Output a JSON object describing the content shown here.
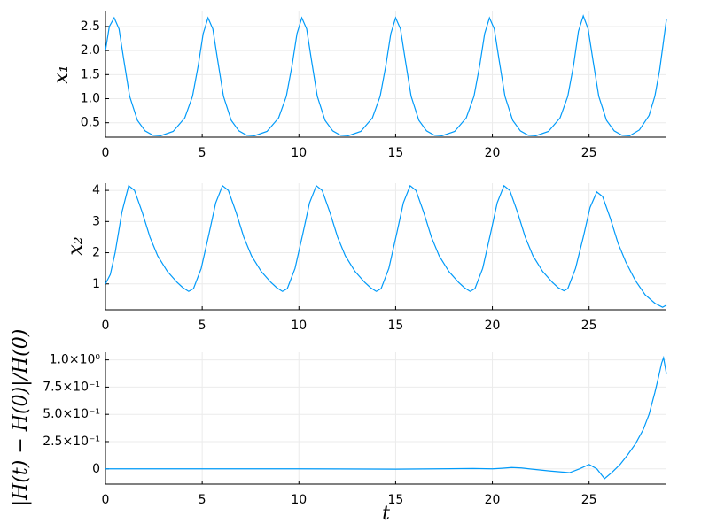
{
  "chart_data": [
    {
      "type": "line",
      "ylabel": "x₁",
      "xlim": [
        0,
        29
      ],
      "xticks": [
        0,
        5,
        10,
        15,
        20,
        25
      ],
      "ylim": [
        0.2,
        2.83
      ],
      "yticks": [
        0.5,
        {
          "value": 1,
          "label": "1.0"
        },
        1.5,
        {
          "value": 2,
          "label": "2.0"
        },
        2.5
      ],
      "grid": true,
      "x": [
        0,
        0.2,
        0.45,
        0.7,
        0.95,
        1.25,
        1.65,
        2.05,
        2.45,
        2.85,
        3.5,
        4.1,
        4.5,
        4.8,
        5.05,
        5.3,
        5.55,
        5.8,
        6.1,
        6.5,
        6.9,
        7.3,
        7.7,
        8.35,
        8.95,
        9.35,
        9.65,
        9.9,
        10.15,
        10.4,
        10.65,
        10.95,
        11.35,
        11.75,
        12.15,
        12.55,
        13.2,
        13.8,
        14.2,
        14.5,
        14.75,
        15.0,
        15.25,
        15.5,
        15.8,
        16.2,
        16.6,
        17.0,
        17.4,
        18.05,
        18.65,
        19.05,
        19.35,
        19.6,
        19.85,
        20.1,
        20.35,
        20.65,
        21.05,
        21.45,
        21.85,
        22.25,
        22.9,
        23.5,
        23.9,
        24.2,
        24.45,
        24.7,
        24.95,
        25.2,
        25.5,
        25.9,
        26.3,
        26.7,
        27.1,
        27.6,
        28.1,
        28.4,
        28.65,
        28.85,
        29.0
      ],
      "series": [
        {
          "name": "x₁",
          "color": "#009af9",
          "values": [
            2.0,
            2.5,
            2.68,
            2.45,
            1.8,
            1.05,
            0.55,
            0.33,
            0.24,
            0.23,
            0.32,
            0.6,
            1.05,
            1.7,
            2.35,
            2.68,
            2.45,
            1.8,
            1.05,
            0.55,
            0.33,
            0.24,
            0.23,
            0.32,
            0.6,
            1.05,
            1.7,
            2.35,
            2.68,
            2.45,
            1.8,
            1.05,
            0.55,
            0.33,
            0.24,
            0.23,
            0.32,
            0.6,
            1.05,
            1.7,
            2.35,
            2.68,
            2.45,
            1.8,
            1.05,
            0.55,
            0.33,
            0.24,
            0.23,
            0.32,
            0.6,
            1.05,
            1.7,
            2.35,
            2.68,
            2.45,
            1.8,
            1.05,
            0.55,
            0.33,
            0.24,
            0.23,
            0.32,
            0.6,
            1.05,
            1.7,
            2.4,
            2.72,
            2.45,
            1.8,
            1.05,
            0.55,
            0.33,
            0.24,
            0.23,
            0.35,
            0.65,
            1.05,
            1.6,
            2.2,
            2.65
          ]
        }
      ]
    },
    {
      "type": "line",
      "ylabel": "x₂",
      "xlim": [
        0,
        29
      ],
      "xticks": [
        0,
        5,
        10,
        15,
        20,
        25
      ],
      "ylim": [
        0.17,
        4.23
      ],
      "yticks": [
        1,
        2,
        3,
        4
      ],
      "grid": true,
      "x": [
        0,
        0.25,
        0.5,
        0.85,
        1.2,
        1.5,
        1.9,
        2.3,
        2.7,
        3.2,
        3.7,
        4.0,
        4.3,
        4.55,
        4.95,
        5.35,
        5.7,
        6.05,
        6.35,
        6.75,
        7.15,
        7.55,
        8.05,
        8.55,
        8.85,
        9.15,
        9.4,
        9.8,
        10.2,
        10.55,
        10.9,
        11.2,
        11.6,
        12.0,
        12.4,
        12.9,
        13.4,
        13.7,
        14.0,
        14.25,
        14.65,
        15.05,
        15.4,
        15.75,
        16.05,
        16.45,
        16.85,
        17.25,
        17.75,
        18.25,
        18.55,
        18.85,
        19.1,
        19.5,
        19.9,
        20.25,
        20.6,
        20.9,
        21.3,
        21.7,
        22.1,
        22.6,
        23.1,
        23.4,
        23.7,
        23.9,
        24.3,
        24.7,
        25.05,
        25.4,
        25.7,
        26.1,
        26.5,
        26.9,
        27.4,
        27.9,
        28.4,
        28.8,
        29.0
      ],
      "series": [
        {
          "name": "x₂",
          "color": "#009af9",
          "values": [
            1.0,
            1.3,
            2.0,
            3.3,
            4.15,
            4.0,
            3.3,
            2.5,
            1.9,
            1.4,
            1.05,
            0.88,
            0.76,
            0.85,
            1.5,
            2.6,
            3.6,
            4.15,
            4.0,
            3.3,
            2.5,
            1.9,
            1.4,
            1.05,
            0.88,
            0.76,
            0.85,
            1.5,
            2.6,
            3.6,
            4.15,
            4.0,
            3.3,
            2.5,
            1.9,
            1.4,
            1.05,
            0.88,
            0.76,
            0.85,
            1.5,
            2.6,
            3.6,
            4.15,
            4.0,
            3.3,
            2.5,
            1.9,
            1.4,
            1.05,
            0.88,
            0.76,
            0.85,
            1.5,
            2.6,
            3.6,
            4.15,
            4.0,
            3.3,
            2.5,
            1.9,
            1.4,
            1.05,
            0.88,
            0.78,
            0.85,
            1.5,
            2.5,
            3.45,
            3.95,
            3.8,
            3.1,
            2.3,
            1.7,
            1.1,
            0.65,
            0.38,
            0.25,
            0.32
          ]
        }
      ]
    },
    {
      "type": "line",
      "ylabel": "|H(t) − H(0)|/H(0)",
      "xlabel": "t",
      "xlim": [
        0,
        29
      ],
      "xticks": [
        0,
        5,
        10,
        15,
        20,
        25
      ],
      "ylim": [
        -0.14,
        1.07
      ],
      "yticks": [
        0,
        {
          "value": 0.25,
          "label": "2.5×10⁻¹"
        },
        {
          "value": 0.5,
          "label": "5.0×10⁻¹"
        },
        {
          "value": 0.75,
          "label": "7.5×10⁻¹"
        },
        {
          "value": 1,
          "label": "1.0×10⁰"
        }
      ],
      "grid": true,
      "x": [
        0,
        5,
        10,
        15,
        19,
        20,
        20.5,
        21,
        21.5,
        22,
        23,
        24,
        24.5,
        25,
        25.4,
        25.8,
        26.2,
        26.6,
        27,
        27.4,
        27.8,
        28.1,
        28.4,
        28.6,
        28.75,
        28.85,
        29.0
      ],
      "series": [
        {
          "name": "|H(t) − H(0)|/H(0)",
          "color": "#009af9",
          "values": [
            0,
            0,
            0,
            -0.003,
            0.003,
            0,
            0.005,
            0.012,
            0.008,
            -0.002,
            -0.02,
            -0.035,
            0,
            0.04,
            0,
            -0.09,
            -0.03,
            0.04,
            0.13,
            0.23,
            0.36,
            0.5,
            0.7,
            0.85,
            0.97,
            1.02,
            0.87
          ]
        }
      ]
    }
  ]
}
